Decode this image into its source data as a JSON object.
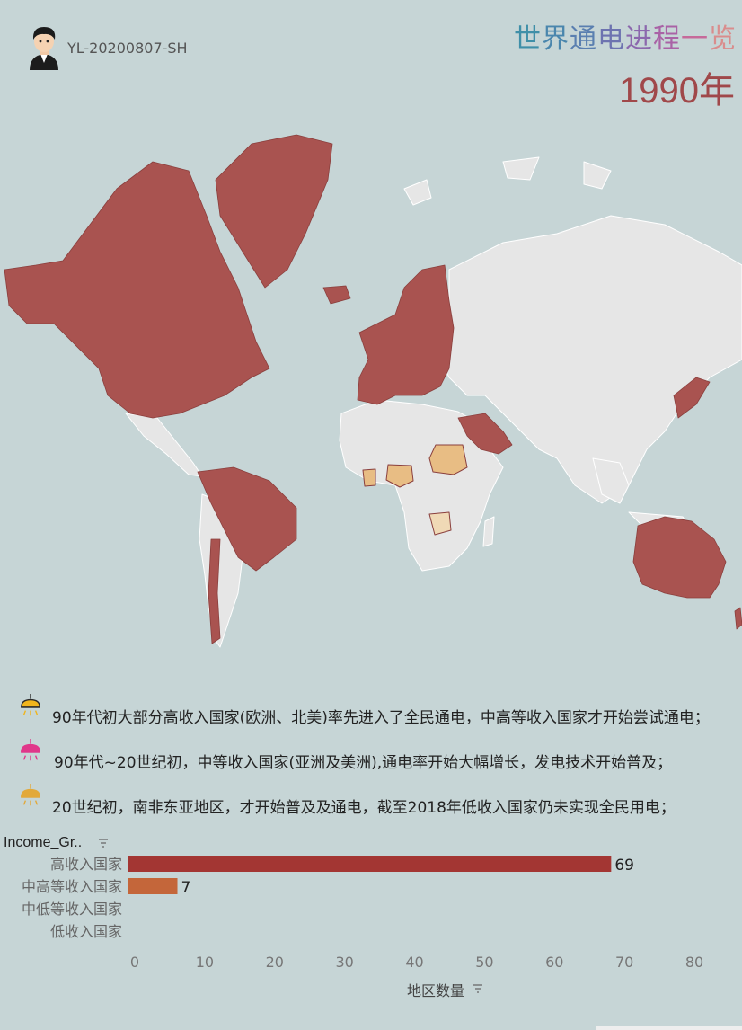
{
  "header": {
    "author": "YL-20200807-SH",
    "title_chars": [
      "世",
      "界",
      "通",
      "电",
      "进",
      "程",
      "一",
      "览"
    ],
    "title_colors": [
      "#3f8fa8",
      "#4a86ad",
      "#5a7fb0",
      "#6d73b0",
      "#8b68ad",
      "#a962a6",
      "#c66a9a",
      "#d98d8d"
    ],
    "year": "1990年"
  },
  "colors": {
    "ocean": "#c6d5d6",
    "high_income": "#a95350",
    "upper_middle": "#c4663a",
    "no_data": "#e6e6e6",
    "highlight_light": "#e8bd84",
    "highlight_pale": "#f0d9b6"
  },
  "notes": [
    {
      "icon": "lamp-icon-dark",
      "icon_color": "#2b2b2b",
      "glow": "#f0b51c",
      "text": "90年代初大部分高收入国家(欧洲、北美)率先进入了全民通电，中高等收入国家才开始尝试通电；"
    },
    {
      "icon": "lamp-icon-pink",
      "icon_color": "#e0378a",
      "glow": "#e0378a",
      "text": "90年代~20世纪初，中等收入国家(亚洲及美洲),通电率开始大幅增长，发电技术开始普及；"
    },
    {
      "icon": "lamp-icon-gold",
      "icon_color": "#e2a93a",
      "glow": "#e2a93a",
      "text": "20世纪初，南非东亚地区，才开始普及及通电，截至2018年低收入国家仍未实现全民用电；"
    }
  ],
  "chart_data": {
    "type": "bar",
    "orientation": "horizontal",
    "category_header": "Income_Gr..",
    "categories": [
      "高收入国家",
      "中高等收入国家",
      "中低等收入国家",
      "低收入国家"
    ],
    "values": [
      69,
      7,
      0,
      0
    ],
    "value_labels": [
      "69",
      "7",
      "",
      ""
    ],
    "bar_colors": [
      "#a33633",
      "#c4663a",
      "#c4663a",
      "#c4663a"
    ],
    "xlabel": "地区数量",
    "xlim": [
      0,
      80
    ],
    "xticks": [
      "0",
      "10",
      "20",
      "30",
      "40",
      "50",
      "60",
      "70",
      "80"
    ],
    "grid": false
  }
}
